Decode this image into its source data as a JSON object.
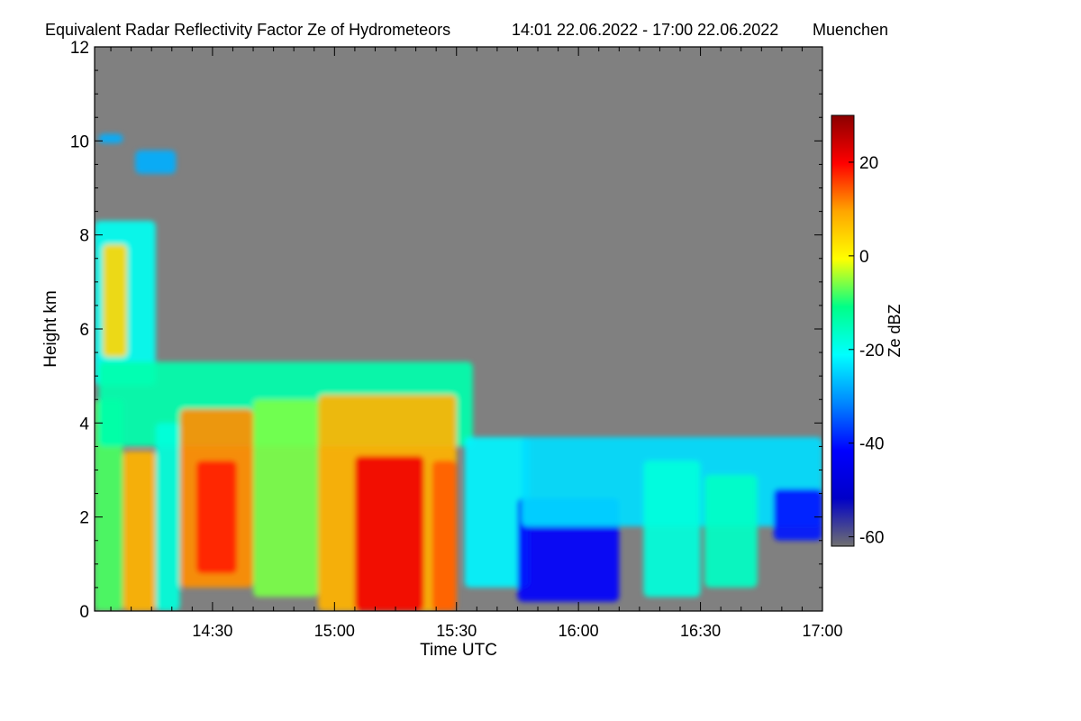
{
  "chart_data": {
    "type": "heatmap",
    "title": "Equivalent Radar Reflectivity Factor Ze of Hydrometeors",
    "period": "14:01 22.06.2022 - 17:00 22.06.2022",
    "location": "Muenchen",
    "xlabel": "Time UTC",
    "ylabel": "Height km",
    "x_range": [
      "14:01",
      "17:00"
    ],
    "x_ticks": [
      {
        "label": "14:30",
        "minutes": 870
      },
      {
        "label": "15:00",
        "minutes": 900
      },
      {
        "label": "15:30",
        "minutes": 930
      },
      {
        "label": "16:00",
        "minutes": 960
      },
      {
        "label": "16:30",
        "minutes": 990
      },
      {
        "label": "17:00",
        "minutes": 1020
      }
    ],
    "ylim": [
      0,
      12
    ],
    "y_ticks": [
      0,
      2,
      4,
      6,
      8,
      10,
      12
    ],
    "background_color": "#808080",
    "colorbar": {
      "label": "Ze dBZ",
      "range": [
        -62,
        30
      ],
      "ticks": [
        20,
        0,
        -20,
        -40,
        -60
      ],
      "colors": [
        "#707070",
        "#0000c8",
        "#0000ff",
        "#0088ff",
        "#00ffff",
        "#00ff88",
        "#ffff00",
        "#ffa500",
        "#ff0000",
        "#8b0000"
      ]
    },
    "echo_regions": [
      {
        "t": [
          842,
          848
        ],
        "h": [
          9.95,
          10.15
        ],
        "dbz": -28
      },
      {
        "t": [
          851,
          861
        ],
        "h": [
          9.3,
          9.8
        ],
        "dbz": -28
      },
      {
        "t": [
          841,
          856
        ],
        "h": [
          4.8,
          8.3
        ],
        "dbz": -20
      },
      {
        "t": [
          843,
          849
        ],
        "h": [
          5.4,
          7.8
        ],
        "dbz": 4
      },
      {
        "t": [
          841,
          848
        ],
        "h": [
          0,
          4.5
        ],
        "dbz": -8
      },
      {
        "t": [
          842,
          934
        ],
        "h": [
          3.5,
          5.3
        ],
        "dbz": -14
      },
      {
        "t": [
          848,
          856
        ],
        "h": [
          0,
          3.4
        ],
        "dbz": 8
      },
      {
        "t": [
          856,
          862
        ],
        "h": [
          0,
          4.0
        ],
        "dbz": -18
      },
      {
        "t": [
          862,
          880
        ],
        "h": [
          0.5,
          4.3
        ],
        "dbz": 11
      },
      {
        "t": [
          866,
          876
        ],
        "h": [
          0.8,
          3.2
        ],
        "dbz": 18
      },
      {
        "t": [
          880,
          896
        ],
        "h": [
          0.3,
          4.5
        ],
        "dbz": -6
      },
      {
        "t": [
          896,
          930
        ],
        "h": [
          0,
          4.6
        ],
        "dbz": 8
      },
      {
        "t": [
          905,
          922
        ],
        "h": [
          0,
          3.3
        ],
        "dbz": 21
      },
      {
        "t": [
          924,
          930
        ],
        "h": [
          0,
          3.2
        ],
        "dbz": 14
      },
      {
        "t": [
          932,
          948
        ],
        "h": [
          0.5,
          3.7
        ],
        "dbz": -22
      },
      {
        "t": [
          945,
          970
        ],
        "h": [
          0.2,
          2.4
        ],
        "dbz": -42
      },
      {
        "t": [
          946,
          1020
        ],
        "h": [
          1.8,
          3.7
        ],
        "dbz": -24
      },
      {
        "t": [
          976,
          990
        ],
        "h": [
          0.3,
          3.2
        ],
        "dbz": -18
      },
      {
        "t": [
          991,
          1004
        ],
        "h": [
          0.5,
          2.9
        ],
        "dbz": -16
      },
      {
        "t": [
          1008,
          1020
        ],
        "h": [
          1.5,
          2.6
        ],
        "dbz": -40
      }
    ]
  }
}
